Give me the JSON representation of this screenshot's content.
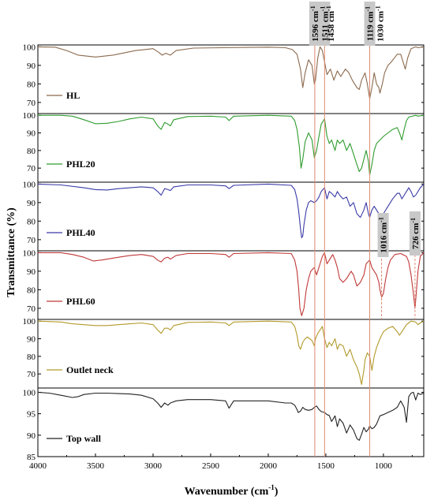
{
  "chart_data": {
    "type": "line",
    "xlabel": "Wavenumber (cm",
    "xlabel_sup": "-1",
    "xlabel_close": ")",
    "ylabel": "Transmittance (%)",
    "xlim": [
      4000,
      650
    ],
    "x_ticks": [
      {
        "value": 4000,
        "label": "4000"
      },
      {
        "value": 3500,
        "label": "3500"
      },
      {
        "value": 3000,
        "label": "3000"
      },
      {
        "value": 2500,
        "label": "2500"
      },
      {
        "value": 2000,
        "label": "2000"
      },
      {
        "value": 1500,
        "label": "1500"
      },
      {
        "value": 1000,
        "label": "1000"
      }
    ],
    "vlines": [
      1596,
      1511,
      1119
    ],
    "annotations": [
      {
        "text": "1596 cm",
        "sup": "-1",
        "x": 1596,
        "boxed": true
      },
      {
        "text": "1511 cm",
        "sup": "-1",
        "x": 1511,
        "boxed": true
      },
      {
        "text": "1458 cm",
        "sup": "-1",
        "x": 1458,
        "boxed": false
      },
      {
        "text": "1119 cm",
        "sup": "-1",
        "x": 1119,
        "boxed": true
      },
      {
        "text": "1030 cm",
        "sup": "-1",
        "x": 1030,
        "boxed": false
      }
    ],
    "panels": [
      {
        "name": "HL",
        "color": "#8b6a4e",
        "ylim": [
          64,
          101
        ],
        "yticks": [
          {
            "value": 100,
            "label": "100"
          },
          {
            "value": 90,
            "label": "90"
          },
          {
            "value": 80,
            "label": "80"
          },
          {
            "value": 70,
            "label": "70"
          }
        ],
        "x": [
          4000,
          3850,
          3750,
          3650,
          3500,
          3350,
          3150,
          3000,
          2950,
          2920,
          2890,
          2850,
          2800,
          2650,
          2400,
          2000,
          1850,
          1790,
          1750,
          1720,
          1700,
          1680,
          1650,
          1620,
          1600,
          1590,
          1570,
          1550,
          1530,
          1511,
          1490,
          1460,
          1430,
          1400,
          1370,
          1330,
          1300,
          1270,
          1230,
          1210,
          1190,
          1160,
          1140,
          1119,
          1100,
          1080,
          1060,
          1040,
          1030,
          1010,
          990,
          960,
          930,
          880,
          850,
          830,
          810,
          790,
          760,
          720,
          700,
          650
        ],
        "y": [
          100,
          99.8,
          98,
          95.5,
          94.5,
          95.5,
          98,
          99,
          97,
          95.5,
          96.5,
          95.5,
          98,
          99.3,
          99.5,
          99.8,
          99.5,
          98.5,
          96,
          88,
          78,
          86,
          93,
          90,
          80,
          82,
          94,
          100,
          98,
          92,
          85,
          88,
          82,
          87,
          84,
          88,
          86,
          82,
          78,
          77,
          82,
          86,
          80,
          72,
          78,
          86,
          80,
          78,
          75,
          80,
          86,
          90,
          92,
          96,
          96,
          92,
          88,
          94,
          99,
          100,
          99.5,
          100
        ]
      },
      {
        "name": "PHL20",
        "color": "#2e9c2e",
        "ylim": [
          62,
          101
        ],
        "yticks": [
          {
            "value": 100,
            "label": "100"
          },
          {
            "value": 90,
            "label": "90"
          },
          {
            "value": 80,
            "label": "80"
          },
          {
            "value": 70,
            "label": "70"
          }
        ],
        "x": [
          4000,
          3900,
          3800,
          3700,
          3600,
          3500,
          3400,
          3300,
          3200,
          3100,
          3000,
          2960,
          2930,
          2900,
          2870,
          2850,
          2820,
          2700,
          2500,
          2370,
          2340,
          2300,
          2000,
          1800,
          1770,
          1750,
          1730,
          1715,
          1700,
          1680,
          1650,
          1620,
          1600,
          1580,
          1560,
          1540,
          1511,
          1490,
          1470,
          1450,
          1420,
          1400,
          1380,
          1350,
          1320,
          1290,
          1260,
          1230,
          1210,
          1190,
          1170,
          1150,
          1130,
          1119,
          1100,
          1080,
          1060,
          1030,
          1000,
          960,
          920,
          880,
          860,
          840,
          820,
          800,
          780,
          720,
          700,
          650
        ],
        "y": [
          100,
          100,
          100,
          99.5,
          97.5,
          95.2,
          95.5,
          96.5,
          98,
          99,
          98,
          94,
          92,
          96,
          95,
          94,
          97.5,
          99.3,
          99.5,
          99,
          97,
          99.5,
          100,
          99.5,
          97,
          92,
          82,
          70,
          75,
          85,
          90,
          86,
          76,
          80,
          88,
          95,
          98,
          88,
          84,
          86,
          80,
          86,
          84,
          86,
          80,
          84,
          78,
          72,
          68,
          70,
          75,
          80,
          74,
          66,
          72,
          80,
          84,
          86,
          88,
          90,
          92,
          93,
          90,
          86,
          92,
          97,
          99,
          100,
          99.5,
          100
        ]
      },
      {
        "name": "PHL40",
        "color": "#3a3aa8",
        "ylim": [
          64,
          101
        ],
        "yticks": [
          {
            "value": 100,
            "label": "100"
          },
          {
            "value": 90,
            "label": "90"
          },
          {
            "value": 80,
            "label": "80"
          },
          {
            "value": 70,
            "label": "70"
          }
        ],
        "x": [
          4000,
          3800,
          3600,
          3500,
          3400,
          3300,
          3100,
          3000,
          2960,
          2930,
          2900,
          2870,
          2850,
          2820,
          2700,
          2500,
          2370,
          2340,
          2300,
          2000,
          1800,
          1770,
          1750,
          1735,
          1720,
          1710,
          1700,
          1690,
          1670,
          1650,
          1630,
          1600,
          1580,
          1560,
          1540,
          1511,
          1490,
          1470,
          1450,
          1420,
          1400,
          1380,
          1350,
          1320,
          1290,
          1260,
          1230,
          1200,
          1170,
          1150,
          1130,
          1119,
          1100,
          1080,
          1060,
          1030,
          1000,
          960,
          920,
          880,
          860,
          840,
          820,
          800,
          780,
          760,
          740,
          720,
          700,
          680,
          650
        ],
        "y": [
          100,
          99.5,
          98,
          97,
          96.8,
          97.5,
          98.5,
          98,
          96,
          94,
          97.5,
          97,
          96.5,
          98.5,
          99.5,
          99.5,
          99,
          97.5,
          99.3,
          100,
          99.3,
          97,
          92,
          85,
          76,
          71,
          72,
          78,
          86,
          90,
          91,
          90,
          91,
          93,
          96,
          98,
          92,
          96,
          95,
          93,
          96,
          94,
          92,
          93,
          88,
          90,
          84,
          82,
          86,
          90,
          84,
          82,
          86,
          88,
          86,
          83,
          84,
          88,
          92,
          95,
          95,
          92,
          94,
          96,
          98,
          96,
          93,
          94,
          96,
          98,
          100
        ]
      },
      {
        "name": "PHL60",
        "color": "#c03838",
        "ylim": [
          64,
          101
        ],
        "yticks": [
          {
            "value": 100,
            "label": "100"
          },
          {
            "value": 90,
            "label": "90"
          },
          {
            "value": 80,
            "label": "80"
          },
          {
            "value": 70,
            "label": "70"
          }
        ],
        "x": [
          4000,
          3800,
          3700,
          3600,
          3520,
          3450,
          3400,
          3300,
          3200,
          3100,
          3000,
          2960,
          2930,
          2900,
          2870,
          2850,
          2800,
          2700,
          2500,
          2370,
          2340,
          2300,
          2000,
          1800,
          1770,
          1750,
          1735,
          1725,
          1710,
          1690,
          1670,
          1650,
          1630,
          1600,
          1580,
          1550,
          1530,
          1511,
          1490,
          1470,
          1440,
          1420,
          1400,
          1380,
          1350,
          1320,
          1300,
          1280,
          1260,
          1230,
          1200,
          1170,
          1150,
          1119,
          1100,
          1080,
          1060,
          1040,
          1030,
          1016,
          1000,
          980,
          960,
          940,
          900,
          850,
          800,
          780,
          760,
          740,
          726,
          715,
          700,
          680,
          650
        ],
        "y": [
          100,
          100,
          99,
          97.5,
          95.5,
          96,
          96.5,
          97.5,
          98.5,
          99,
          98,
          96,
          95,
          97,
          97.5,
          96.5,
          98.5,
          99.5,
          99.5,
          99,
          97.5,
          99.5,
          100,
          99.5,
          96,
          90,
          80,
          70,
          66,
          70,
          80,
          86,
          90,
          92,
          88,
          94,
          98,
          100,
          94,
          96,
          99,
          96,
          92,
          86,
          84,
          86,
          88,
          90,
          88,
          82,
          84,
          88,
          94,
          96,
          92,
          90,
          88,
          84,
          80,
          76,
          78,
          86,
          92,
          96,
          99,
          99.5,
          98,
          95,
          88,
          78,
          70,
          78,
          90,
          98,
          100
        ]
      },
      {
        "name": "Outlet neck",
        "color": "#b29a2b",
        "ylim": [
          62,
          101
        ],
        "yticks": [
          {
            "value": 100,
            "label": "100"
          },
          {
            "value": 90,
            "label": "90"
          },
          {
            "value": 80,
            "label": "80"
          },
          {
            "value": 70,
            "label": "70"
          }
        ],
        "x": [
          4000,
          3800,
          3700,
          3600,
          3500,
          3400,
          3300,
          3200,
          3100,
          3000,
          2960,
          2930,
          2900,
          2870,
          2850,
          2820,
          2700,
          2500,
          2370,
          2340,
          2300,
          2000,
          1800,
          1770,
          1750,
          1735,
          1720,
          1700,
          1680,
          1660,
          1640,
          1620,
          1600,
          1590,
          1570,
          1550,
          1530,
          1511,
          1490,
          1470,
          1450,
          1420,
          1400,
          1380,
          1350,
          1320,
          1290,
          1260,
          1230,
          1210,
          1190,
          1170,
          1160,
          1140,
          1119,
          1100,
          1080,
          1060,
          1030,
          1000,
          960,
          920,
          880,
          860,
          840,
          820,
          800,
          780,
          760,
          720,
          700,
          680,
          650
        ],
        "y": [
          100,
          99.5,
          98.5,
          98,
          97.5,
          97.5,
          98,
          98.5,
          99,
          98,
          95,
          93,
          96,
          96,
          95,
          97.5,
          99.3,
          99.5,
          99,
          97.5,
          99.5,
          100,
          99.5,
          97,
          92,
          86,
          84,
          88,
          90,
          91,
          90,
          89,
          86,
          90,
          93,
          95,
          97,
          90,
          85,
          88,
          86,
          90,
          84,
          87,
          86,
          80,
          84,
          78,
          74,
          70,
          64,
          72,
          78,
          82,
          80,
          72,
          80,
          85,
          90,
          94,
          96,
          97,
          94,
          92,
          94,
          96,
          98,
          99,
          100,
          99.5,
          98,
          99,
          100
        ]
      },
      {
        "name": "Top wall",
        "color": "#222222",
        "ylim": [
          85,
          101
        ],
        "yticks": [
          {
            "value": 100,
            "label": "100"
          },
          {
            "value": 95,
            "label": "95"
          },
          {
            "value": 90,
            "label": "90"
          },
          {
            "value": 85,
            "label": "85"
          }
        ],
        "x": [
          4000,
          3900,
          3800,
          3700,
          3650,
          3600,
          3500,
          3400,
          3300,
          3200,
          3100,
          3000,
          2960,
          2930,
          2900,
          2870,
          2850,
          2800,
          2700,
          2500,
          2370,
          2340,
          2300,
          2000,
          1850,
          1800,
          1770,
          1750,
          1740,
          1720,
          1700,
          1680,
          1650,
          1620,
          1600,
          1580,
          1560,
          1540,
          1511,
          1490,
          1470,
          1450,
          1420,
          1400,
          1380,
          1350,
          1320,
          1290,
          1260,
          1230,
          1210,
          1190,
          1170,
          1150,
          1130,
          1119,
          1100,
          1080,
          1060,
          1030,
          1000,
          960,
          920,
          880,
          850,
          820,
          800,
          780,
          760,
          740,
          720,
          700,
          680,
          650
        ],
        "y": [
          100,
          99.8,
          99.3,
          98.8,
          99,
          99.5,
          99.8,
          99.8,
          99.7,
          99.6,
          99.3,
          98.5,
          97.5,
          96.5,
          97.5,
          97,
          97.5,
          98,
          98.3,
          98.3,
          98,
          96.3,
          98,
          98,
          97.5,
          97.5,
          97,
          96,
          95.3,
          95.6,
          96.5,
          96,
          95.8,
          96,
          96.5,
          96.8,
          96,
          95.5,
          95.3,
          94.8,
          94.6,
          93.2,
          94.5,
          92,
          93.8,
          92.8,
          90.5,
          92.4,
          91.2,
          89.2,
          88.8,
          90.2,
          91.8,
          90.8,
          91.4,
          92.2,
          91.5,
          91.8,
          92.6,
          94.5,
          94.8,
          95.3,
          95.8,
          96.5,
          98,
          96.5,
          93,
          99,
          99.8,
          100,
          98.2,
          99.8,
          99.5,
          99.8
        ]
      }
    ]
  }
}
